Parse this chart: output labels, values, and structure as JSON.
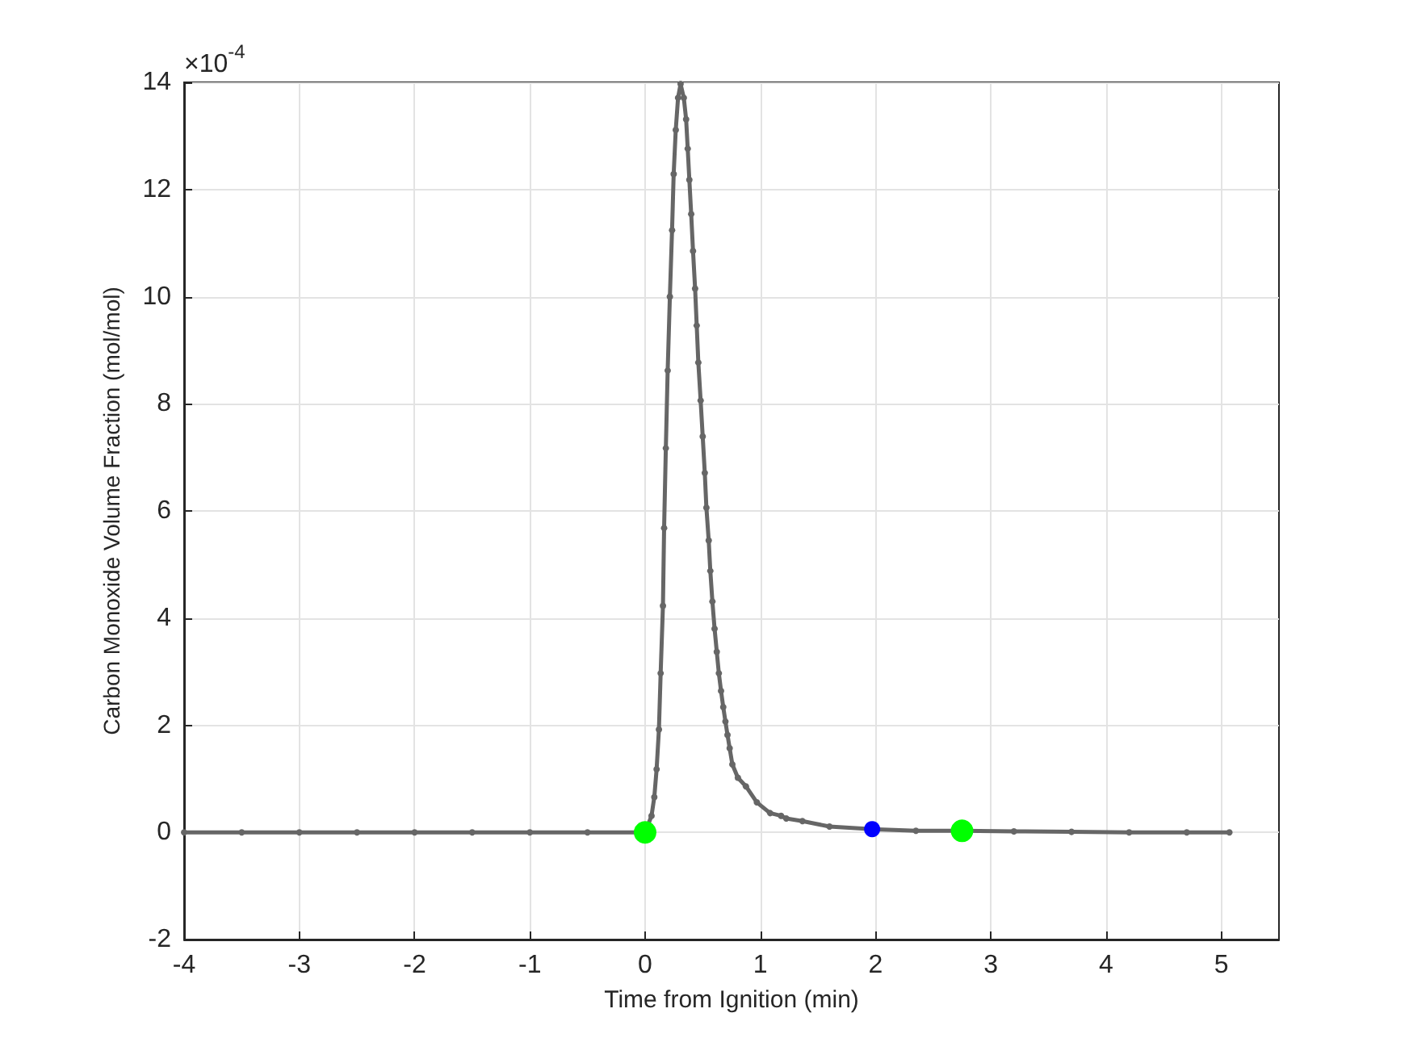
{
  "chart_data": {
    "type": "line",
    "xlabel": "Time from Ignition (min)",
    "ylabel": "Carbon Monoxide Volume Fraction (mol/mol)",
    "annotations": [
      "×10$^{-4}$"
    ],
    "xlim": [
      -4,
      5.5
    ],
    "xticks": [
      -4,
      -3,
      -2,
      -1,
      0,
      1,
      2,
      3,
      4,
      5
    ],
    "ylim": [
      -2,
      14
    ],
    "yticks": [
      -2,
      0,
      2,
      4,
      6,
      8,
      10,
      12,
      14
    ],
    "grid": true,
    "marker": "circle",
    "line_style": "solid",
    "series": [
      {
        "color": "#666666",
        "x": [
          -4,
          -3.5,
          -3,
          -2.5,
          -2,
          -1.5,
          -1,
          -0.5,
          0,
          0.056,
          0.08,
          0.1,
          0.12,
          0.135,
          0.155,
          0.165,
          0.18,
          0.196,
          0.215,
          0.234,
          0.248,
          0.266,
          0.286,
          0.308,
          0.336,
          0.356,
          0.37,
          0.384,
          0.4,
          0.416,
          0.434,
          0.448,
          0.462,
          0.482,
          0.5,
          0.518,
          0.532,
          0.552,
          0.566,
          0.584,
          0.603,
          0.622,
          0.64,
          0.659,
          0.678,
          0.697,
          0.715,
          0.734,
          0.757,
          0.805,
          0.875,
          0.97,
          1.085,
          1.18,
          1.225,
          1.365,
          1.6,
          1.97,
          2.35,
          2.75,
          3.2,
          3.7,
          4.2,
          4.7,
          5.07
        ],
        "values": [
          0,
          0,
          0,
          0,
          0,
          0,
          0,
          0,
          0,
          0.31,
          0.66,
          1.18,
          1.92,
          2.97,
          4.23,
          5.68,
          7.17,
          8.62,
          10.0,
          11.24,
          12.29,
          13.11,
          13.71,
          13.97,
          13.71,
          13.31,
          12.76,
          12.18,
          11.54,
          10.85,
          10.15,
          9.46,
          8.77,
          8.06,
          7.39,
          6.71,
          6.06,
          5.45,
          4.88,
          4.31,
          3.8,
          3.37,
          2.97,
          2.64,
          2.34,
          2.07,
          1.82,
          1.57,
          1.27,
          1.02,
          0.86,
          0.56,
          0.36,
          0.31,
          0.26,
          0.21,
          0.11,
          0.06,
          0.03,
          0.03,
          0.02,
          0.01,
          0,
          0,
          0
        ]
      },
      {
        "type": "scatter",
        "color": "#00ff00",
        "x": [
          0,
          2.75
        ],
        "values": [
          0,
          0.03
        ]
      },
      {
        "type": "scatter",
        "color": "#0000ff",
        "x": [
          1.97
        ],
        "values": [
          0.06
        ]
      }
    ]
  }
}
